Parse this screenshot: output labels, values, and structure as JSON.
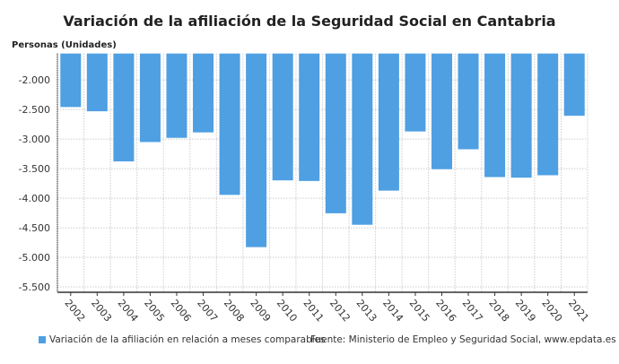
{
  "chart_data": {
    "type": "bar",
    "title": "Variación de la afiliación de la Seguridad Social en Cantabria",
    "ylabel": "Personas (Unidades)",
    "xlabel": "",
    "categories": [
      "2002",
      "2003",
      "2004",
      "2005",
      "2006",
      "2007",
      "2008",
      "2009",
      "2010",
      "2011",
      "2012",
      "2013",
      "2014",
      "2015",
      "2016",
      "2017",
      "2018",
      "2019",
      "2020",
      "2021"
    ],
    "series": [
      {
        "name": "Variación de la afiliación en relación a meses comparables",
        "values": [
          -2459,
          -2531,
          -3378,
          -3051,
          -2980,
          -2888,
          -3944,
          -4827,
          -3699,
          -3709,
          -4255,
          -4449,
          -3872,
          -2872,
          -3510,
          -3173,
          -3643,
          -3653,
          -3612,
          -2607
        ]
      }
    ],
    "yticks": [
      -2000,
      -2500,
      -3000,
      -3500,
      -4000,
      -4500,
      -5000,
      -5500
    ],
    "ytick_labels": [
      "-2.000",
      "-2.500",
      "-3.000",
      "-3.500",
      "-4.000",
      "-4.500",
      "-5.000",
      "-5.500"
    ],
    "ylim": [
      -5590,
      -1555
    ],
    "grid": true,
    "legend_position": "bottom-left",
    "bar_color": "#4f9fe3",
    "source": "Fuente: Ministerio de Empleo y Seguridad Social, www.epdata.es"
  }
}
